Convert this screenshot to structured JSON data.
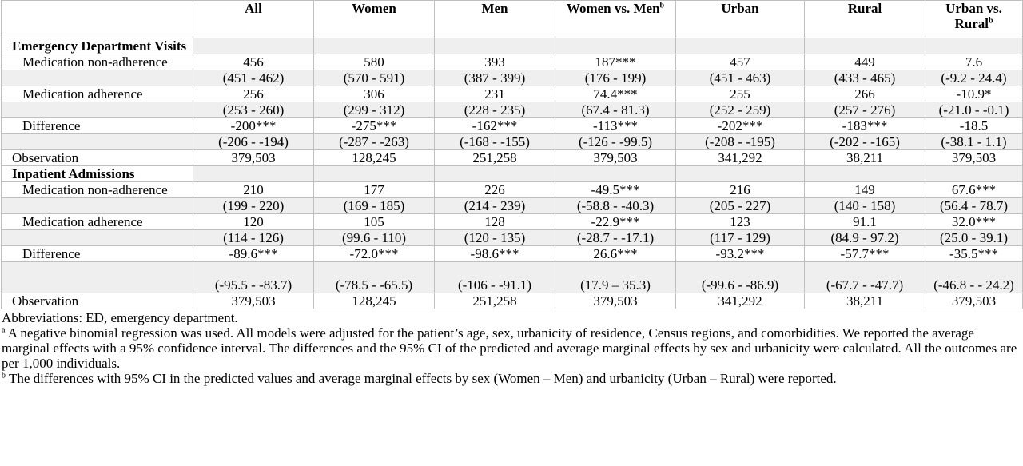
{
  "header": {
    "cols": [
      {
        "text": "All",
        "sup": ""
      },
      {
        "text": "Women",
        "sup": ""
      },
      {
        "text": "Men",
        "sup": ""
      },
      {
        "text": "Women vs. Men",
        "sup": "b"
      },
      {
        "text": "Urban",
        "sup": ""
      },
      {
        "text": "Rural",
        "sup": ""
      },
      {
        "text": "Urban vs. Rural",
        "sup": "b"
      }
    ]
  },
  "sections": [
    {
      "title": "Emergency Department Visits",
      "rows": [
        {
          "label": "Medication non-adherence",
          "values": [
            "456",
            "580",
            "393",
            "187***",
            "457",
            "449",
            "7.6"
          ],
          "ci": [
            "(451 - 462)",
            "(570 - 591)",
            "(387 - 399)",
            "(176 - 199)",
            "(451 - 463)",
            "(433 - 465)",
            "(-9.2 - 24.4)"
          ]
        },
        {
          "label": "Medication adherence",
          "values": [
            "256",
            "306",
            "231",
            "74.4***",
            "255",
            "266",
            "-10.9*"
          ],
          "ci": [
            "(253 - 260)",
            "(299 - 312)",
            "(228 - 235)",
            "(67.4 - 81.3)",
            "(252 - 259)",
            "(257 - 276)",
            "(-21.0 - -0.1)"
          ]
        },
        {
          "label": "Difference",
          "values": [
            "-200***",
            "-275***",
            "-162***",
            "-113***",
            "-202***",
            "-183***",
            "-18.5"
          ],
          "ci": [
            "(-206 - -194)",
            "(-287 - -263)",
            "(-168 - -155)",
            "(-126 - -99.5)",
            "(-208 - -195)",
            "(-202 - -165)",
            "(-38.1 - 1.1)"
          ]
        }
      ],
      "observation": {
        "label": "Observation",
        "values": [
          "379,503",
          "128,245",
          "251,258",
          "379,503",
          "341,292",
          "38,211",
          "379,503"
        ]
      }
    },
    {
      "title": "Inpatient Admissions",
      "rows": [
        {
          "label": "Medication non-adherence",
          "values": [
            "210",
            "177",
            "226",
            "-49.5***",
            "216",
            "149",
            "67.6***"
          ],
          "ci": [
            "(199 - 220)",
            "(169 - 185)",
            "(214 - 239)",
            "(-58.8 - -40.3)",
            "(205 - 227)",
            "(140 - 158)",
            "(56.4 - 78.7)"
          ]
        },
        {
          "label": "Medication adherence",
          "values": [
            "120",
            "105",
            "128",
            "-22.9***",
            "123",
            "91.1",
            "32.0***"
          ],
          "ci": [
            "(114 - 126)",
            "(99.6 - 110)",
            "(120 - 135)",
            "(-28.7 - -17.1)",
            "(117 - 129)",
            "(84.9 - 97.2)",
            "(25.0 - 39.1)"
          ]
        },
        {
          "label": "Difference",
          "values": [
            "-89.6***",
            "-72.0***",
            "-98.6***",
            "26.6***",
            "-93.2***",
            "-57.7***",
            "-35.5***"
          ],
          "ci": [
            "(-95.5 - -83.7)",
            "(-78.5 - -65.5)",
            "(-106 - -91.1)",
            "(17.9 – 35.3)",
            "(-99.6 - -86.9)",
            "(-67.7 - -47.7)",
            "(-46.8 - - 24.2)"
          ]
        }
      ],
      "observation": {
        "label": "Observation",
        "values": [
          "379,503",
          "128,245",
          "251,258",
          "379,503",
          "341,292",
          "38,211",
          "379,503"
        ]
      }
    }
  ],
  "notes": {
    "abbrev": "Abbreviations: ED, emergency department.",
    "note_a_mark": "a",
    "note_a": "A negative binomial regression was used. All models were adjusted for the patient’s age, sex, urbanicity of residence, Census regions, and comorbidities. We reported the average marginal effects with a 95% confidence interval. The differences and the 95% CI of the predicted and average marginal effects by sex and urbanicity were calculated. All the outcomes are per 1,000 individuals.",
    "note_b_mark": "b",
    "note_b": "The differences with 95% CI in the predicted values and average marginal effects by sex (Women – Men) and urbanicity (Urban – Rural) were reported."
  }
}
